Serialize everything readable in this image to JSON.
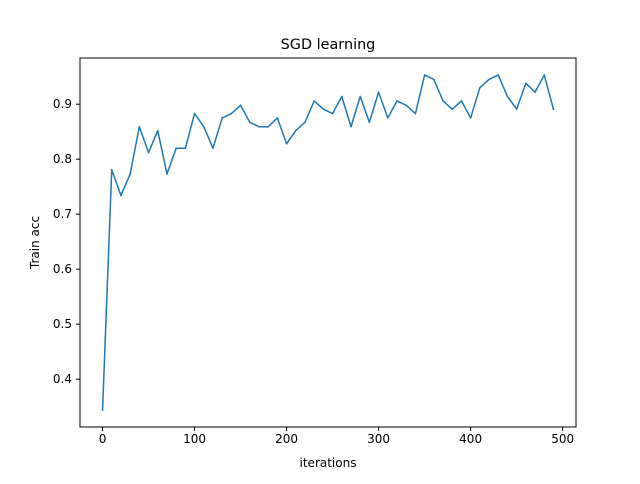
{
  "chart_data": {
    "type": "line",
    "title": "SGD learning",
    "xlabel": "iterations",
    "ylabel": "Train acc",
    "xlim": [
      -24.5,
      514.5
    ],
    "ylim": [
      0.313,
      0.984
    ],
    "xticks": [
      0,
      100,
      200,
      300,
      400,
      500
    ],
    "yticks": [
      0.4,
      0.5,
      0.6,
      0.7,
      0.8,
      0.9
    ],
    "xtick_labels": [
      "0",
      "100",
      "200",
      "300",
      "400",
      "500"
    ],
    "ytick_labels": [
      "0.4",
      "0.5",
      "0.6",
      "0.7",
      "0.8",
      "0.9"
    ],
    "grid": false,
    "line_color": "#1f77b4",
    "series": [
      {
        "x": [
          0,
          10,
          20,
          30,
          40,
          50,
          60,
          70,
          80,
          90,
          100,
          110,
          120,
          130,
          140,
          150,
          160,
          170,
          180,
          190,
          200,
          210,
          220,
          230,
          240,
          250,
          260,
          270,
          280,
          290,
          300,
          310,
          320,
          330,
          340,
          350,
          360,
          370,
          380,
          390,
          400,
          410,
          420,
          430,
          440,
          450,
          460,
          470,
          480,
          490
        ],
        "values": [
          0.344,
          0.781,
          0.734,
          0.773,
          0.859,
          0.812,
          0.852,
          0.773,
          0.82,
          0.82,
          0.883,
          0.859,
          0.82,
          0.875,
          0.883,
          0.898,
          0.867,
          0.859,
          0.859,
          0.875,
          0.828,
          0.852,
          0.867,
          0.906,
          0.891,
          0.883,
          0.914,
          0.859,
          0.914,
          0.867,
          0.922,
          0.875,
          0.906,
          0.898,
          0.883,
          0.953,
          0.945,
          0.906,
          0.891,
          0.906,
          0.875,
          0.93,
          0.945,
          0.953,
          0.914,
          0.891,
          0.938,
          0.922,
          0.953,
          0.891
        ]
      }
    ]
  }
}
